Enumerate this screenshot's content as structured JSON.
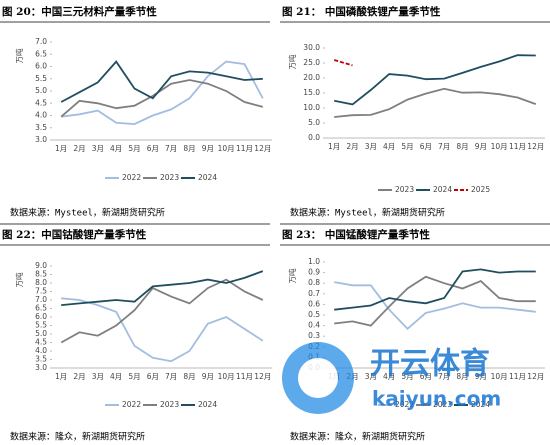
{
  "chart_data": [
    {
      "type": "line",
      "title": "图 20：中国三元材料产量季节性",
      "ylabel": "万吨",
      "categories": [
        "1月",
        "2月",
        "3月",
        "4月",
        "5月",
        "6月",
        "7月",
        "8月",
        "9月",
        "10月",
        "11月",
        "12月"
      ],
      "ylim": [
        3,
        7
      ],
      "yticks": [
        {
          "value": 3,
          "label": "3.0"
        },
        {
          "value": 3.5,
          "label": "3.5"
        },
        {
          "value": 4,
          "label": "4.0"
        },
        {
          "value": 4.5,
          "label": "4.5"
        },
        {
          "value": 5,
          "label": "5.0"
        },
        {
          "value": 5.5,
          "label": "5.5"
        },
        {
          "value": 6,
          "label": "6.0"
        },
        {
          "value": 6.5,
          "label": "6.5"
        },
        {
          "value": 7,
          "label": "7.0"
        }
      ],
      "series": [
        {
          "name": "2022",
          "color": "#a3bde0",
          "values": [
            3.95,
            4.05,
            4.2,
            3.7,
            3.65,
            4.0,
            4.25,
            4.7,
            5.6,
            6.2,
            6.1,
            4.7
          ]
        },
        {
          "name": "2023",
          "color": "#7f7f7f",
          "values": [
            3.95,
            4.6,
            4.5,
            4.3,
            4.4,
            4.8,
            5.3,
            5.45,
            5.3,
            5.0,
            4.55,
            4.35
          ]
        },
        {
          "name": "2024",
          "color": "#1f4e5f",
          "values": [
            4.55,
            4.95,
            5.35,
            6.2,
            5.1,
            4.7,
            5.6,
            5.8,
            5.75,
            5.6,
            5.45,
            5.5
          ]
        }
      ],
      "source": "数据来源：Mysteel，新湖期货研究所"
    },
    {
      "type": "line",
      "title": "图 21：  中国磷酸铁锂产量季节性",
      "ylabel": "万吨",
      "categories": [
        "1月",
        "2月",
        "3月",
        "4月",
        "5月",
        "6月",
        "7月",
        "8月",
        "9月",
        "10月",
        "11月",
        "12月"
      ],
      "ylim": [
        0,
        30
      ],
      "yticks": [
        {
          "value": 0,
          "label": "0.0"
        },
        {
          "value": 5,
          "label": "5.0"
        },
        {
          "value": 10,
          "label": "10.0"
        },
        {
          "value": 15,
          "label": "15.0"
        },
        {
          "value": 20,
          "label": "20.0"
        },
        {
          "value": 25,
          "label": "25.0"
        },
        {
          "value": 30,
          "label": "30.0"
        }
      ],
      "series": [
        {
          "name": "2023",
          "color": "#7f7f7f",
          "values": [
            7.0,
            7.6,
            7.7,
            9.6,
            12.8,
            14.8,
            16.4,
            15.1,
            15.2,
            14.6,
            13.5,
            11.3
          ]
        },
        {
          "name": "2024",
          "color": "#1f4e5f",
          "values": [
            12.4,
            11.2,
            16.0,
            21.3,
            20.8,
            19.6,
            19.8,
            21.7,
            23.7,
            25.5,
            27.6,
            27.5
          ]
        },
        {
          "name": "2025",
          "color": "#c00000",
          "line_style": "dashed",
          "values": [
            26.0,
            24.2,
            null,
            null,
            null,
            null,
            null,
            null,
            null,
            null,
            null,
            null
          ]
        }
      ],
      "source": "数据来源：Mysteel，新湖期货研究所"
    },
    {
      "type": "line",
      "title": "图 22：中国钴酸锂产量季节性",
      "ylabel": "万吨",
      "categories": [
        "1月",
        "2月",
        "3月",
        "4月",
        "5月",
        "6月",
        "7月",
        "8月",
        "9月",
        "10月",
        "11月",
        "12月"
      ],
      "ylim": [
        3,
        9
      ],
      "yticks": [
        {
          "value": 3,
          "label": "3.0"
        },
        {
          "value": 3.5,
          "label": "3.5"
        },
        {
          "value": 4,
          "label": "4.0"
        },
        {
          "value": 4.5,
          "label": "4.5"
        },
        {
          "value": 5,
          "label": "5.0"
        },
        {
          "value": 5.5,
          "label": "5.5"
        },
        {
          "value": 6,
          "label": "6.0"
        },
        {
          "value": 6.5,
          "label": "6.5"
        },
        {
          "value": 7,
          "label": "7.0"
        },
        {
          "value": 7.5,
          "label": "7.5"
        },
        {
          "value": 8,
          "label": "8.0"
        },
        {
          "value": 8.5,
          "label": "8.5"
        },
        {
          "value": 9,
          "label": "9.0"
        }
      ],
      "series": [
        {
          "name": "2022",
          "color": "#a3bde0",
          "values": [
            7.1,
            7.0,
            6.7,
            6.3,
            4.3,
            3.6,
            3.4,
            4.0,
            5.6,
            6.0,
            5.3,
            4.6
          ]
        },
        {
          "name": "2023",
          "color": "#7f7f7f",
          "values": [
            4.5,
            5.1,
            4.9,
            5.5,
            6.4,
            7.7,
            7.2,
            6.8,
            7.7,
            8.2,
            7.5,
            7.0
          ]
        },
        {
          "name": "2024",
          "color": "#1f4e5f",
          "values": [
            6.7,
            6.8,
            6.9,
            7.0,
            6.9,
            7.8,
            7.9,
            8.0,
            8.2,
            8.0,
            8.3,
            8.7
          ]
        }
      ],
      "source": "数据来源：隆众，新湖期货研究所"
    },
    {
      "type": "line",
      "title": "图 23：  中国锰酸锂产量季节性",
      "ylabel": "万吨",
      "categories": [
        "1月",
        "2月",
        "3月",
        "4月",
        "5月",
        "6月",
        "7月",
        "8月",
        "9月",
        "10月",
        "11月",
        "12月"
      ],
      "ylim": [
        0,
        1
      ],
      "yticks": [
        {
          "value": 0,
          "label": "0.0"
        },
        {
          "value": 0.1,
          "label": "0.1"
        },
        {
          "value": 0.2,
          "label": "0.2"
        },
        {
          "value": 0.3,
          "label": "0.3"
        },
        {
          "value": 0.4,
          "label": "0.4"
        },
        {
          "value": 0.5,
          "label": "0.5"
        },
        {
          "value": 0.6,
          "label": "0.6"
        },
        {
          "value": 0.7,
          "label": "0.7"
        },
        {
          "value": 0.8,
          "label": "0.8"
        },
        {
          "value": 0.9,
          "label": "0.9"
        },
        {
          "value": 1,
          "label": "1.0"
        }
      ],
      "series": [
        {
          "name": "2022",
          "color": "#a3bde0",
          "values": [
            0.81,
            0.78,
            0.78,
            0.55,
            0.37,
            0.52,
            0.56,
            0.61,
            0.57,
            0.57,
            0.55,
            0.53
          ]
        },
        {
          "name": "2023",
          "color": "#7f7f7f",
          "values": [
            0.42,
            0.44,
            0.4,
            0.58,
            0.75,
            0.86,
            0.8,
            0.75,
            0.82,
            0.66,
            0.63,
            0.63
          ]
        },
        {
          "name": "2024",
          "color": "#1f4e5f",
          "values": [
            0.55,
            0.57,
            0.59,
            0.66,
            0.63,
            0.61,
            0.66,
            0.91,
            0.93,
            0.9,
            0.91,
            0.91
          ]
        }
      ],
      "source": "数据来源：隆众，新湖期货研究所"
    }
  ],
  "watermark": {
    "brand": "开云体育",
    "url": "kaiyun.com"
  }
}
